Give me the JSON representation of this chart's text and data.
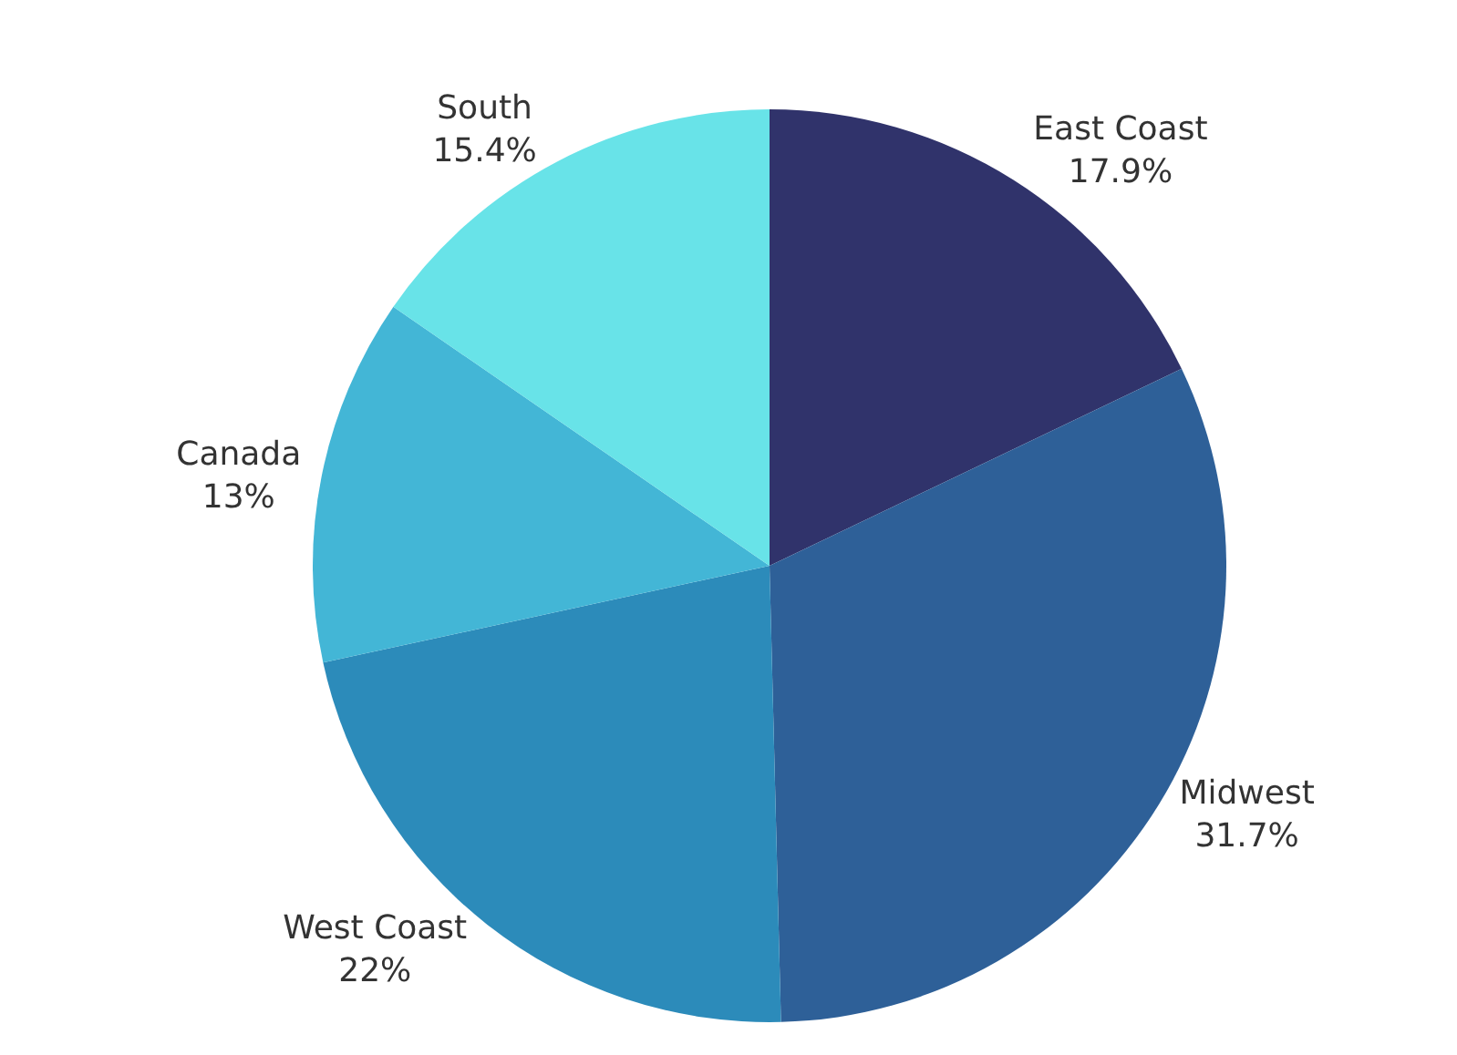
{
  "chart_data": {
    "type": "pie",
    "categories": [
      "East Coast",
      "Midwest",
      "West Coast",
      "Canada",
      "South"
    ],
    "values": [
      17.9,
      31.7,
      22,
      13,
      15.4
    ],
    "value_labels": [
      "17.9%",
      "31.7%",
      "22%",
      "13%",
      "15.4%"
    ],
    "colors": [
      "#30336b",
      "#2e6098",
      "#2c8bba",
      "#43b6d6",
      "#68e3e8"
    ],
    "legend": false
  }
}
